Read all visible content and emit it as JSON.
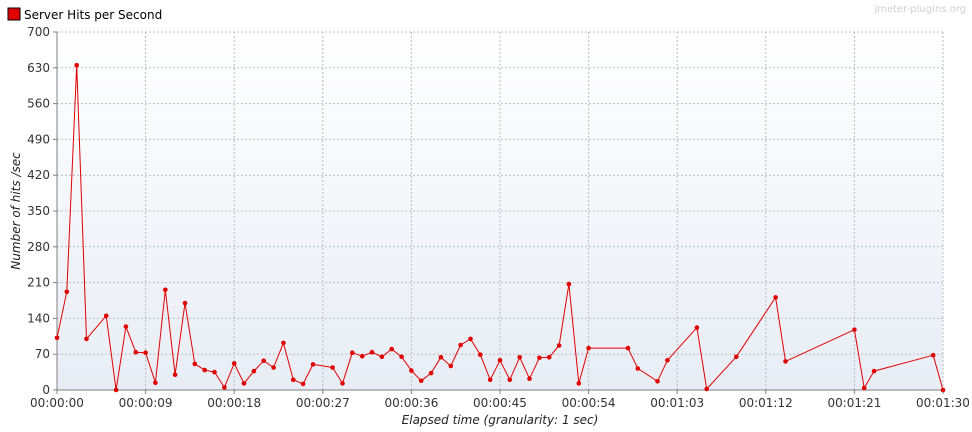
{
  "watermark": "jmeter-plugins.org",
  "colors": {
    "series": "#e00000",
    "grid": "#b8bcc4",
    "plot_top": "#ffffff",
    "plot_bottom": "#e8edf5"
  },
  "chart_data": {
    "type": "line",
    "title": "",
    "xlabel": "Elapsed time (granularity: 1 sec)",
    "ylabel": "Number of hits /sec",
    "ylim": [
      0,
      700
    ],
    "xlim": [
      "00:00:00",
      "00:01:30"
    ],
    "x_ticks": [
      "00:00:00",
      "00:00:09",
      "00:00:18",
      "00:00:27",
      "00:00:36",
      "00:00:45",
      "00:00:54",
      "00:01:03",
      "00:01:12",
      "00:01:21",
      "00:01:30"
    ],
    "y_ticks": [
      "0",
      "70",
      "140",
      "210",
      "280",
      "350",
      "420",
      "490",
      "560",
      "630",
      "700"
    ],
    "grid": true,
    "legend_position": "top-left",
    "series": [
      {
        "name": "Server Hits per Second",
        "color": "#e00000",
        "x": [
          "00:00:00",
          "00:00:01",
          "00:00:02",
          "00:00:03",
          "00:00:05",
          "00:00:06",
          "00:00:07",
          "00:00:08",
          "00:00:09",
          "00:00:10",
          "00:00:11",
          "00:00:12",
          "00:00:13",
          "00:00:14",
          "00:00:15",
          "00:00:16",
          "00:00:17",
          "00:00:18",
          "00:00:19",
          "00:00:20",
          "00:00:21",
          "00:00:22",
          "00:00:23",
          "00:00:24",
          "00:00:25",
          "00:00:26",
          "00:00:28",
          "00:00:29",
          "00:00:30",
          "00:00:31",
          "00:00:32",
          "00:00:33",
          "00:00:34",
          "00:00:35",
          "00:00:36",
          "00:00:37",
          "00:00:38",
          "00:00:39",
          "00:00:40",
          "00:00:41",
          "00:00:42",
          "00:00:43",
          "00:00:44",
          "00:00:45",
          "00:00:46",
          "00:00:47",
          "00:00:48",
          "00:00:49",
          "00:00:50",
          "00:00:51",
          "00:00:52",
          "00:00:53",
          "00:00:54",
          "00:00:58",
          "00:00:59",
          "00:01:01",
          "00:01:02",
          "00:01:05",
          "00:01:06",
          "00:01:09",
          "00:01:13",
          "00:01:14",
          "00:01:21",
          "00:01:22",
          "00:01:23",
          "00:01:29",
          "00:01:30"
        ],
        "values": [
          102,
          192,
          635,
          100,
          145,
          0,
          124,
          74,
          73,
          14,
          196,
          30,
          170,
          51,
          39,
          35,
          5,
          52,
          13,
          37,
          57,
          44,
          92,
          20,
          12,
          50,
          44,
          13,
          73,
          66,
          74,
          65,
          80,
          65,
          38,
          18,
          33,
          64,
          47,
          88,
          100,
          69,
          20,
          58,
          20,
          64,
          22,
          63,
          64,
          87,
          207,
          13,
          82,
          82,
          42,
          17,
          58,
          122,
          2,
          65,
          181,
          56,
          118,
          4,
          37,
          68,
          0
        ]
      }
    ]
  }
}
